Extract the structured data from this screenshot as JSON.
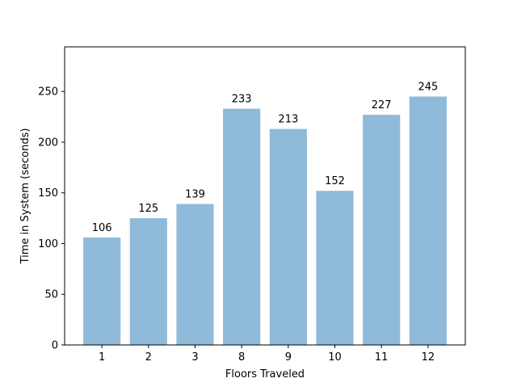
{
  "chart_data": {
    "type": "bar",
    "categories": [
      "1",
      "2",
      "3",
      "8",
      "9",
      "10",
      "11",
      "12"
    ],
    "values": [
      106,
      125,
      139,
      233,
      213,
      152,
      227,
      245
    ],
    "data_labels": [
      "106",
      "125",
      "139",
      "233",
      "213",
      "152",
      "227",
      "245"
    ],
    "title": "",
    "xlabel": "Floors Traveled",
    "ylabel": "Time in System (seconds)",
    "ylim": [
      0,
      294
    ],
    "yticks": [
      0,
      50,
      100,
      150,
      200,
      250
    ],
    "ytick_labels": [
      "0",
      "50",
      "100",
      "150",
      "200",
      "250"
    ],
    "grid": false,
    "bar_color": "#8fbad9"
  }
}
